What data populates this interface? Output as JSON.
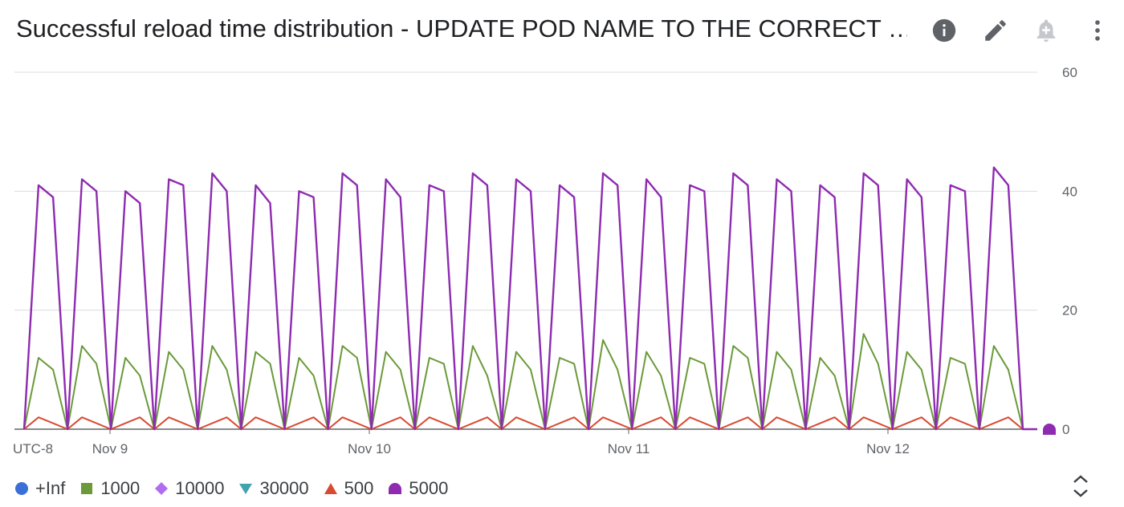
{
  "header": {
    "title": "Successful reload time distribution - UPDATE POD NAME TO THE CORRECT …",
    "icons": [
      "info-icon",
      "edit-icon",
      "add-alert-icon",
      "more-vert-icon"
    ]
  },
  "colors": {
    "+Inf": "#3b6fd8",
    "1000": "#6a9a3a",
    "10000": "#b26cf0",
    "30000": "#3fa3b0",
    "500": "#d94a32",
    "5000": "#8e2bb0",
    "grid": "#dadce0",
    "axis": "#5f6368"
  },
  "chart_data": {
    "type": "line",
    "title": "Successful reload time distribution - UPDATE POD NAME TO THE CORRECT …",
    "timezone_label": "UTC-8",
    "x_tick_labels": [
      "Nov 9",
      "Nov 10",
      "Nov 11",
      "Nov 12"
    ],
    "x_range": [
      "Nov 8 18:40",
      "Nov 12 17:30"
    ],
    "ylim": [
      0,
      60
    ],
    "y_ticks": [
      "0",
      "20",
      "40",
      "60"
    ],
    "grid": true,
    "legend_position": "bottom",
    "series": [
      {
        "name": "+Inf",
        "marker": "circle",
        "values": []
      },
      {
        "name": "1000",
        "marker": "square",
        "values": [
          0,
          12,
          10,
          0,
          14,
          11,
          0,
          12,
          9,
          0,
          13,
          10,
          0,
          14,
          10,
          0,
          13,
          11,
          0,
          12,
          9,
          0,
          14,
          12,
          0,
          13,
          10,
          0,
          12,
          11,
          0,
          14,
          9,
          0,
          13,
          10,
          0,
          12,
          11,
          0,
          15,
          10,
          0,
          13,
          9,
          0,
          12,
          11,
          0,
          14,
          12,
          0,
          13,
          10,
          0,
          12,
          9,
          0,
          16,
          11,
          0,
          13,
          10,
          0,
          12,
          11,
          0,
          14,
          10,
          0,
          0
        ]
      },
      {
        "name": "10000",
        "marker": "diamond",
        "values": []
      },
      {
        "name": "30000",
        "marker": "triangle-down",
        "values": []
      },
      {
        "name": "500",
        "marker": "triangle",
        "values": [
          0,
          2,
          1,
          0,
          2,
          1,
          0,
          1,
          2,
          0,
          2,
          1,
          0,
          1,
          2,
          0,
          2,
          1,
          0,
          1,
          2,
          0,
          2,
          1,
          0,
          1,
          2,
          0,
          2,
          1,
          0,
          1,
          2,
          0,
          2,
          1,
          0,
          1,
          2,
          0,
          2,
          1,
          0,
          1,
          2,
          0,
          2,
          1,
          0,
          1,
          2,
          0,
          2,
          1,
          0,
          1,
          2,
          0,
          2,
          1,
          0,
          1,
          2,
          0,
          2,
          1,
          0,
          1,
          2,
          0,
          0
        ]
      },
      {
        "name": "5000",
        "marker": "semicircle",
        "values": [
          0,
          41,
          39,
          0,
          42,
          40,
          0,
          40,
          38,
          0,
          42,
          41,
          0,
          43,
          40,
          0,
          41,
          38,
          0,
          40,
          39,
          0,
          43,
          41,
          0,
          42,
          39,
          0,
          41,
          40,
          0,
          43,
          41,
          0,
          42,
          40,
          0,
          41,
          39,
          0,
          43,
          41,
          0,
          42,
          39,
          0,
          41,
          40,
          0,
          43,
          41,
          0,
          42,
          40,
          0,
          41,
          39,
          0,
          43,
          41,
          0,
          42,
          39,
          0,
          41,
          40,
          0,
          44,
          41,
          0,
          0
        ]
      }
    ]
  },
  "legend_toggle": "expand-collapse-icon"
}
